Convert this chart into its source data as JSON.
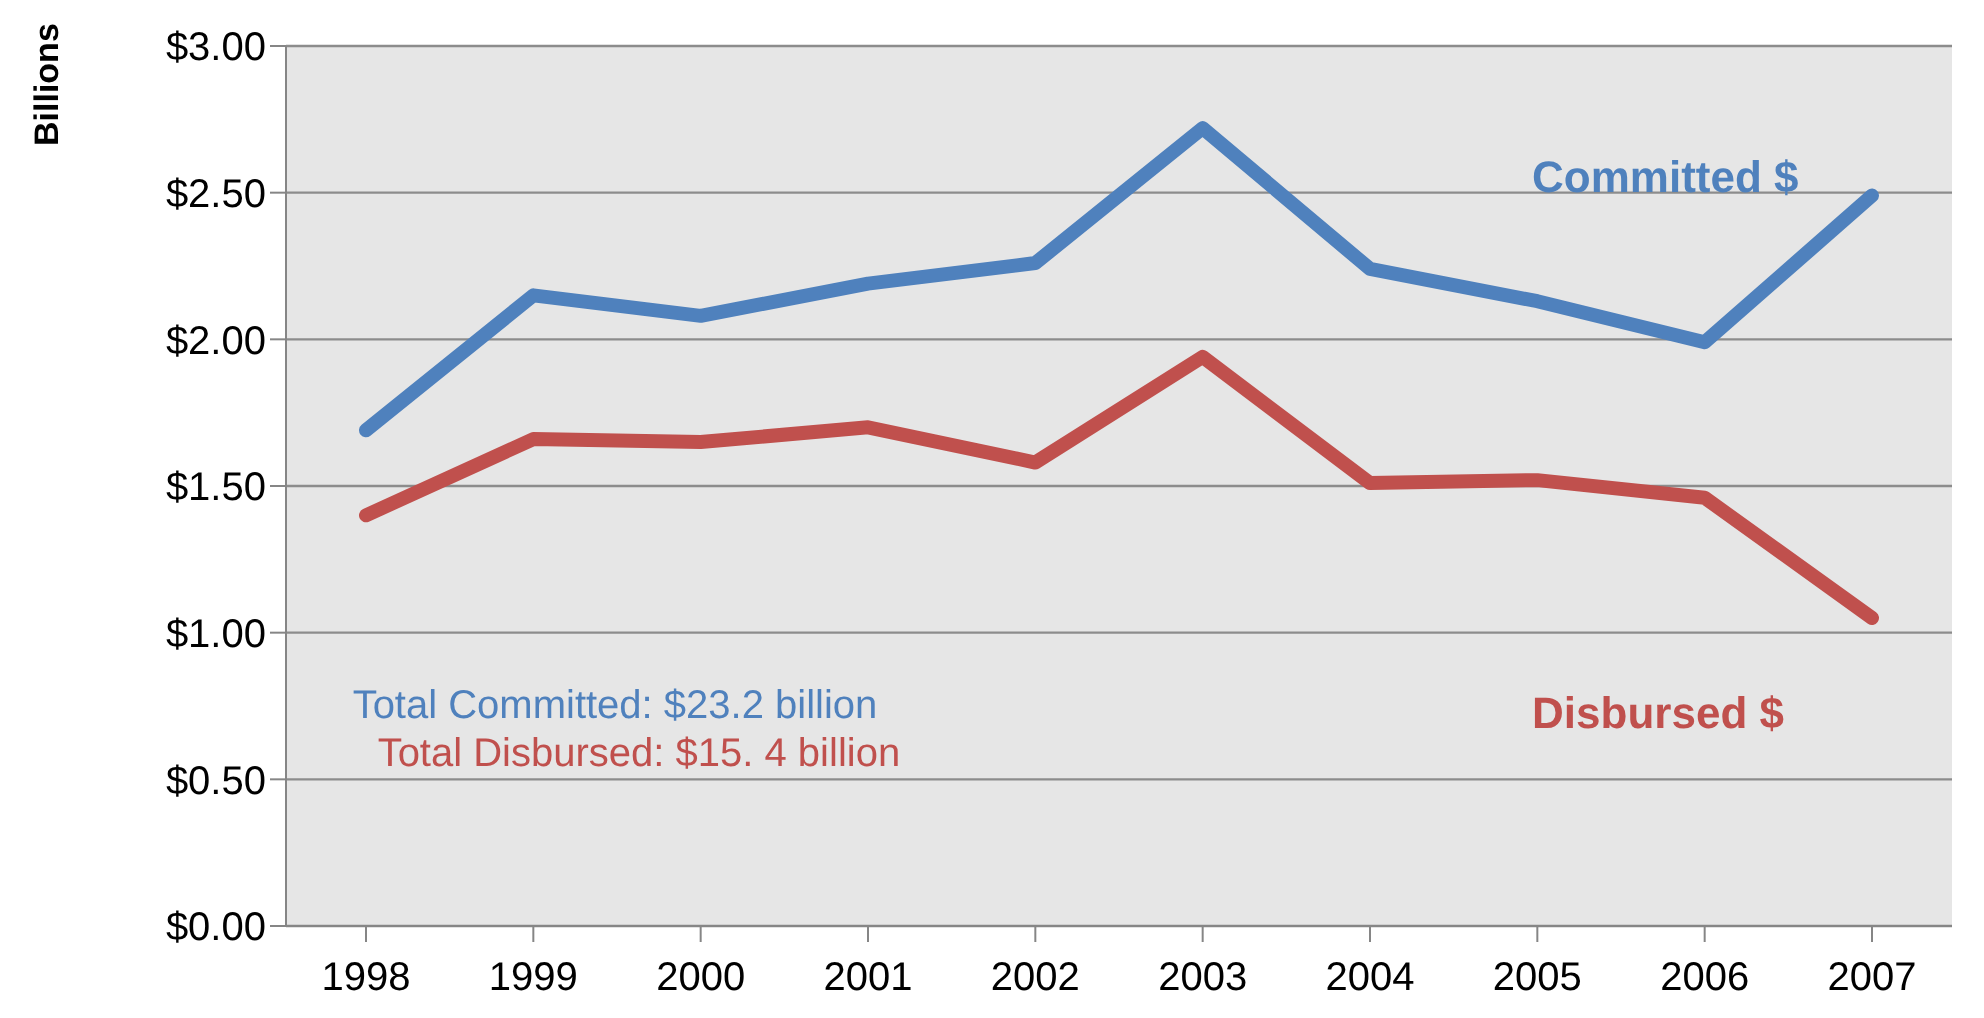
{
  "chart_data": {
    "type": "line",
    "ylabel": "Billions",
    "categories": [
      "1998",
      "1999",
      "2000",
      "2001",
      "2002",
      "2003",
      "2004",
      "2005",
      "2006",
      "2007"
    ],
    "series": [
      {
        "name": "Committed $",
        "color": "#4f81bd",
        "values": [
          1.69,
          2.15,
          2.08,
          2.19,
          2.26,
          2.72,
          2.24,
          2.13,
          1.99,
          2.49
        ]
      },
      {
        "name": "Disbursed $",
        "color": "#c0504d",
        "values": [
          1.4,
          1.66,
          1.65,
          1.7,
          1.58,
          1.94,
          1.51,
          1.52,
          1.46,
          1.05
        ]
      }
    ],
    "ylim": [
      0,
      3
    ],
    "yticks": [
      {
        "value": 0,
        "label": "$0.00"
      },
      {
        "value": 0.5,
        "label": "$0.50"
      },
      {
        "value": 1,
        "label": "$1.00"
      },
      {
        "value": 1.5,
        "label": "$1.50"
      },
      {
        "value": 2,
        "label": "$2.00"
      },
      {
        "value": 2.5,
        "label": "$2.50"
      },
      {
        "value": 3,
        "label": "$3.00"
      }
    ],
    "grid": "y",
    "legend": false,
    "marker": "none",
    "line_style": "solid",
    "annotations": [
      "Total Committed: $23.2 billion",
      "Total Disbursed: $15. 4 billion"
    ]
  }
}
